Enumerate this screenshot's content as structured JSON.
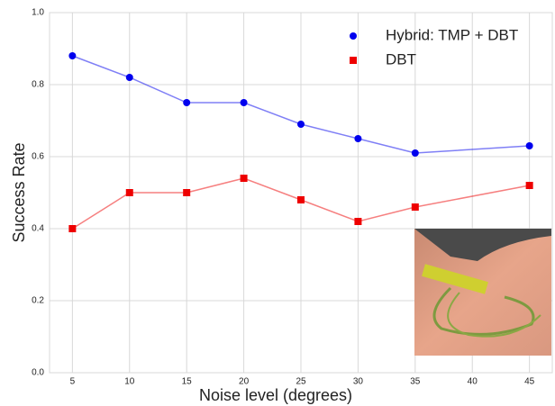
{
  "chart_data": {
    "type": "line",
    "x_label": "Noise level (degrees)",
    "y_label": "Success Rate",
    "x": [
      5,
      10,
      15,
      20,
      25,
      30,
      35,
      40,
      45
    ],
    "series": [
      {
        "name": "Hybrid: TMP + DBT",
        "color": "#0000ee",
        "marker": "circle",
        "values": [
          0.88,
          0.82,
          0.75,
          0.75,
          0.69,
          0.65,
          0.61,
          null,
          0.63
        ]
      },
      {
        "name": "DBT",
        "color": "#ee0000",
        "marker": "square",
        "values": [
          0.4,
          0.5,
          0.5,
          0.54,
          0.48,
          0.42,
          0.46,
          null,
          0.52
        ]
      }
    ],
    "xlim": [
      3,
      47
    ],
    "xticks": [
      5,
      10,
      15,
      20,
      25,
      30,
      35,
      40,
      45
    ],
    "ylim": [
      0,
      1
    ],
    "yticks": [
      {
        "value": 0,
        "label": "0.0"
      },
      {
        "value": 0.2,
        "label": "0.2"
      },
      {
        "value": 0.4,
        "label": "0.4"
      },
      {
        "value": 0.6,
        "label": "0.6"
      },
      {
        "value": 0.8,
        "label": "0.8"
      },
      {
        "value": 1,
        "label": "1.0"
      }
    ],
    "grid": true,
    "legend": "upper right"
  }
}
